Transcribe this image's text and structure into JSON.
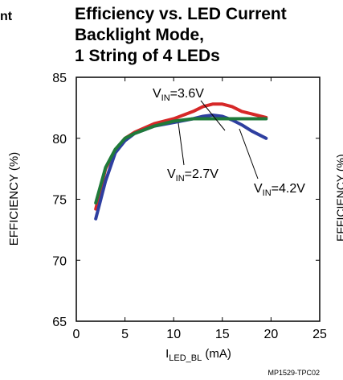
{
  "left_cropped_text": "nt",
  "right_cropped_text": "EFFICIENCY (%)",
  "chart_data": {
    "type": "line",
    "title_lines": [
      "Efficiency vs. LED Current",
      "Backlight Mode,",
      "1 String of 4 LEDs"
    ],
    "xlabel": {
      "main": "I",
      "sub": "LED_BL",
      "rest": " (mA)"
    },
    "ylabel": "EFFICIENCY (%)",
    "xlim": [
      0,
      25
    ],
    "ylim": [
      65,
      85
    ],
    "xticks": [
      "0",
      "5",
      "10",
      "15",
      "20",
      "25"
    ],
    "yticks": [
      "85",
      "80",
      "75",
      "70",
      "65"
    ],
    "grid": false,
    "figure_id": "MP1529-TPC02",
    "series": [
      {
        "name": "V_IN=3.6V",
        "color": "#d62828",
        "x": [
          2,
          3,
          4,
          5,
          6,
          8,
          10,
          12,
          13,
          14,
          15,
          16,
          17,
          18,
          19.5
        ],
        "y": [
          74.2,
          77.5,
          79,
          80,
          80.5,
          81.2,
          81.6,
          82.2,
          82.6,
          82.8,
          82.8,
          82.6,
          82.2,
          82,
          81.7
        ]
      },
      {
        "name": "V_IN=4.2V",
        "color": "#2e3fa0",
        "x": [
          2,
          3,
          4,
          5,
          6,
          8,
          10,
          12,
          13,
          14,
          15,
          16,
          17,
          18,
          19.5
        ],
        "y": [
          73.4,
          76.5,
          78.8,
          79.8,
          80.4,
          81,
          81.3,
          81.6,
          81.8,
          81.9,
          81.8,
          81.5,
          81.1,
          80.6,
          80
        ]
      },
      {
        "name": "V_IN=2.7V",
        "color": "#1f7a3a",
        "x": [
          2,
          3,
          4,
          5,
          6,
          8,
          10,
          12,
          14,
          16,
          18,
          19.5
        ],
        "y": [
          74.7,
          77.6,
          79.1,
          80,
          80.4,
          81,
          81.4,
          81.6,
          81.6,
          81.6,
          81.6,
          81.6
        ]
      }
    ],
    "annotations": [
      {
        "main": "V",
        "sub": "IN",
        "rest": "=3.6V"
      },
      {
        "main": "V",
        "sub": "IN",
        "rest": "=2.7V"
      },
      {
        "main": "V",
        "sub": "IN",
        "rest": "=4.2V"
      }
    ]
  }
}
